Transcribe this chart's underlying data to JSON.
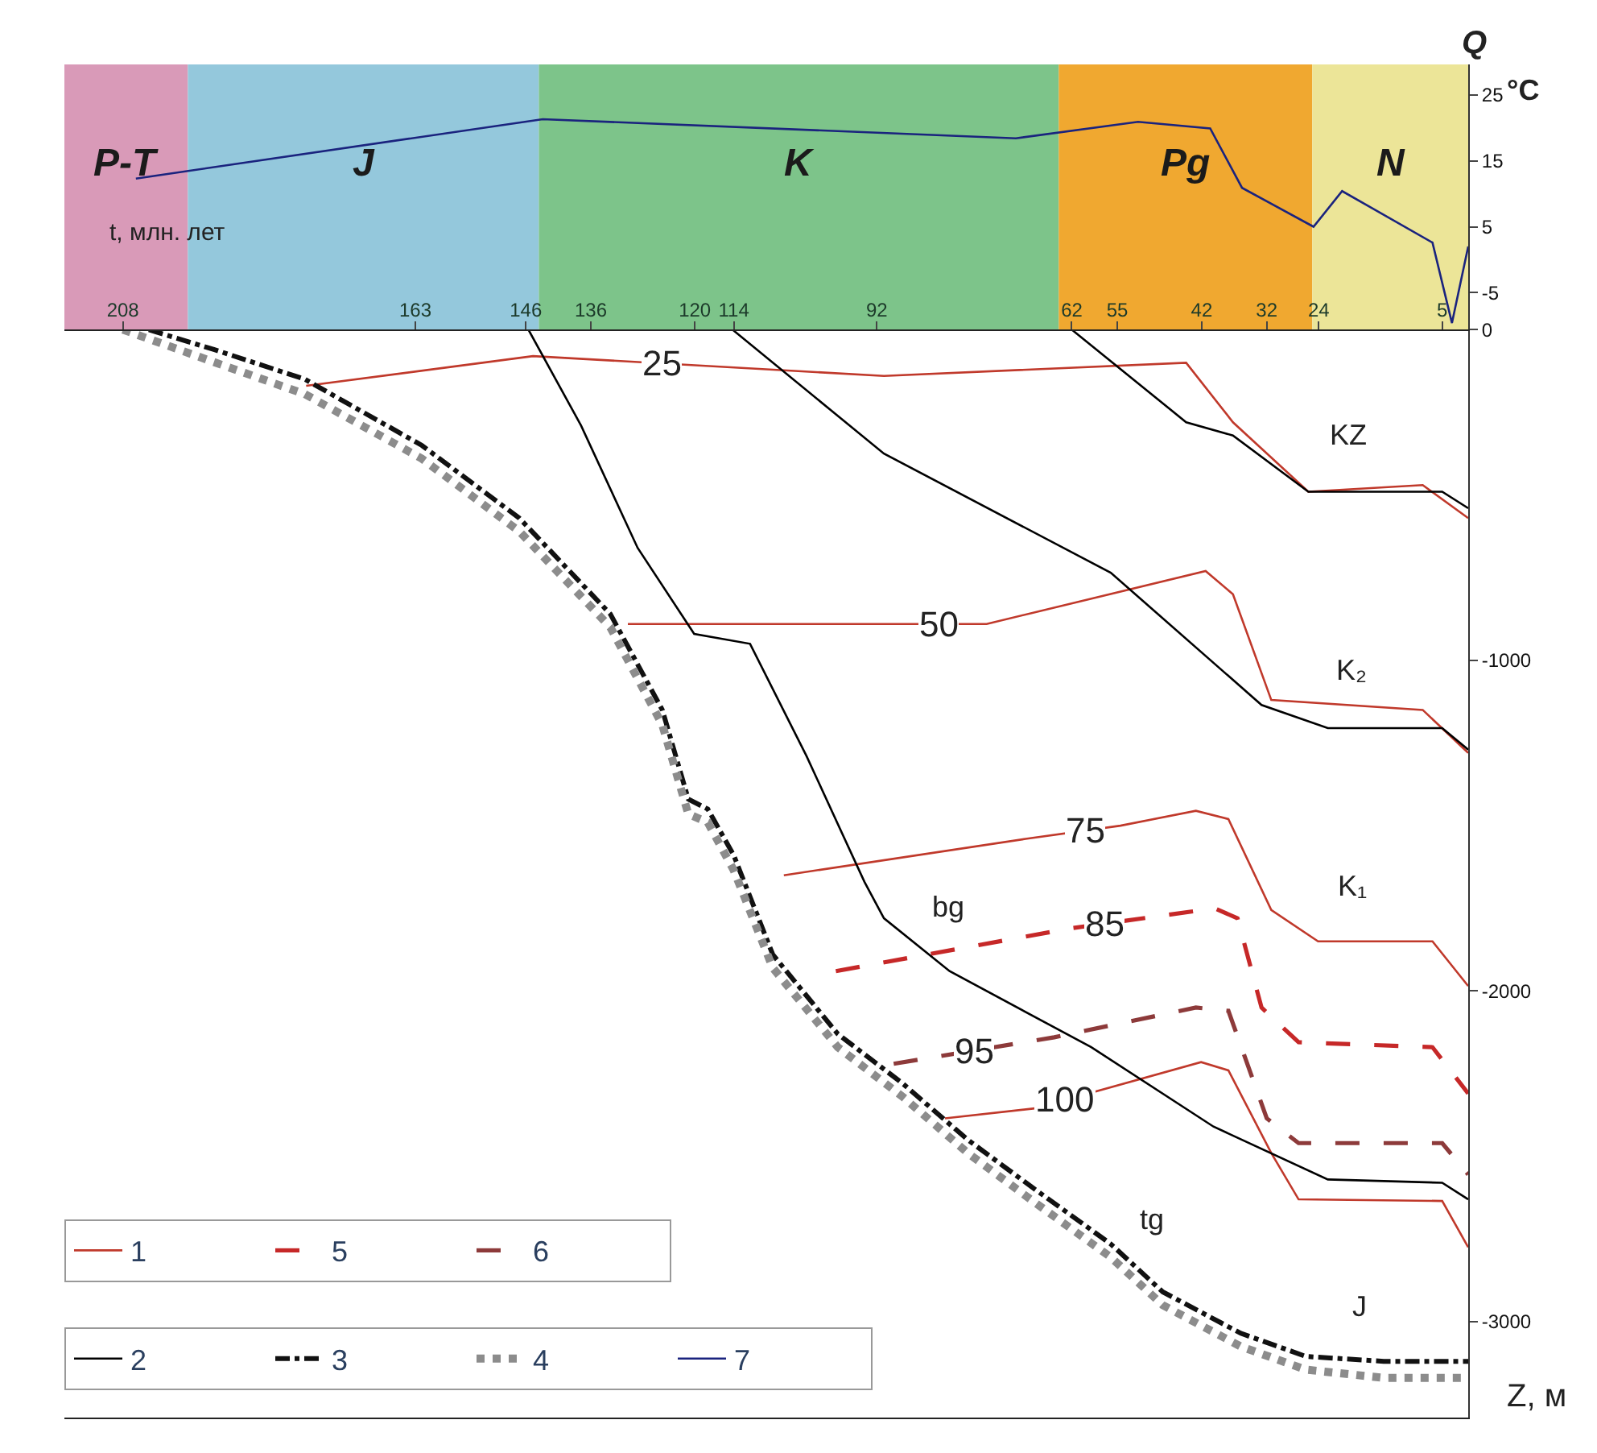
{
  "chart_data": [
    {
      "type": "line",
      "xlabel": "t, млн. лет",
      "ylabel": "°C",
      "annotations": [
        "Q"
      ],
      "xlim": [
        217,
        1
      ],
      "xticks": [
        208,
        163,
        146,
        136,
        120,
        114,
        92,
        62,
        55,
        42,
        32,
        24,
        5
      ],
      "ylim": [
        -10.6,
        29.6
      ],
      "yticks": [
        25,
        15,
        5,
        -5
      ],
      "legend": "bottom left",
      "grid": false,
      "bands": [
        {
          "axis": "x",
          "from": 217,
          "to": 198,
          "label": "P-T",
          "color": "#d99ab8"
        },
        {
          "axis": "x",
          "from": 198,
          "to": 144,
          "label": "J",
          "color": "#94c8dc"
        },
        {
          "axis": "x",
          "from": 144,
          "to": 64,
          "label": "K",
          "color": "#7dc48a"
        },
        {
          "axis": "x",
          "from": 64,
          "to": 25,
          "label": "Pg",
          "color": "#f0a830"
        },
        {
          "axis": "x",
          "from": 25,
          "to": 1,
          "label": "N",
          "color": "#ece598"
        }
      ],
      "series": [
        {
          "name": "7",
          "color": "#1a237e",
          "line_style": "solid",
          "x": [
            206,
            143.4,
            70.6,
            51.8,
            40.7,
            35.8,
            24.8,
            20.4,
            6.5,
            3.5,
            1
          ],
          "values": [
            12.3,
            21.3,
            18.4,
            20.9,
            19.9,
            10.9,
            5,
            10.4,
            2.6,
            -9.6,
            2
          ]
        }
      ]
    },
    {
      "type": "line",
      "ylabel": "Z, м",
      "xlim": [
        217,
        1
      ],
      "ylim": [
        -3290,
        0
      ],
      "yticks": [
        0,
        -1000,
        -2000,
        -3000
      ],
      "tick_labels": "y",
      "legend": "bottom left",
      "grid": false,
      "annotations": [
        {
          "text": "25",
          "x": 125,
          "y": -102
        },
        {
          "text": "50",
          "x": 82.5,
          "y": -890
        },
        {
          "text": "75",
          "x": 60,
          "y": -1515
        },
        {
          "text": "85",
          "x": 57,
          "y": -1796
        },
        {
          "text": "95",
          "x": 77,
          "y": -2180
        },
        {
          "text": "100",
          "x": 63,
          "y": -2330
        },
        "bg",
        "tg",
        "KZ",
        "K₂",
        "K₁",
        "J"
      ],
      "series": [
        {
          "name": "1",
          "color": "#c0392b",
          "line_style": "solid",
          "x": [
            179.8,
            144.9,
            90.9,
            44.4,
            37.2,
            25.6,
            8,
            1
          ],
          "values": [
            -170,
            -80,
            -140,
            -100,
            -280,
            -490,
            -470,
            -570
          ]
        },
        {
          "color": "#c0392b",
          "line_style": "solid",
          "x": [
            130.3,
            92.4,
            75.1,
            41.4,
            37.2,
            31.3,
            8,
            1
          ],
          "values": [
            -890,
            -890,
            -890,
            -730,
            -800,
            -1120,
            -1150,
            -1280
          ]
        },
        {
          "color": "#c0392b",
          "line_style": "solid",
          "x": [
            106.3,
            69.1,
            54.5,
            42.9,
            37.9,
            31.3,
            24.1,
            6.5,
            1
          ],
          "values": [
            -1650,
            -1540,
            -1500,
            -1455,
            -1480,
            -1755,
            -1850,
            -1850,
            -1985
          ]
        },
        {
          "color": "#c0392b",
          "line_style": "solid",
          "x": [
            81.5,
            67.7,
            42.1,
            37.9,
            31.3,
            27.1,
            5,
            1
          ],
          "values": [
            -2385,
            -2355,
            -2215,
            -2240,
            -2490,
            -2630,
            -2635,
            -2775
          ]
        },
        {
          "name": "5",
          "color": "#c62828",
          "line_style": "dashed",
          "x": [
            98.3,
            62,
            40,
            36.5,
            32.8,
            27.1,
            6.5,
            1
          ],
          "values": [
            -1940,
            -1810,
            -1750,
            -1780,
            -2050,
            -2155,
            -2170,
            -2310
          ]
        },
        {
          "name": "6",
          "color": "#8d3a3a",
          "line_style": "dashed",
          "x": [
            89.4,
            64.7,
            42.9,
            37.9,
            32,
            27.1,
            5,
            1
          ],
          "values": [
            -2220,
            -2140,
            -2050,
            -2060,
            -2385,
            -2460,
            -2460,
            -2555
          ]
        },
        {
          "color": "#000000",
          "line_style": "solid",
          "x": [
            114.2,
            90.9,
            56,
            32.8,
            22.6,
            5,
            1
          ],
          "values": [
            0,
            -375,
            -735,
            -1135,
            -1205,
            -1205,
            -1270
          ]
        },
        {
          "color": "#000000",
          "line_style": "solid",
          "x": [
            62,
            44.4,
            37.2,
            25.6,
            5,
            1
          ],
          "values": [
            0,
            -280,
            -320,
            -490,
            -490,
            -540
          ]
        },
        {
          "name": "2",
          "color": "#000000",
          "line_style": "solid",
          "x": [
            145.6,
            137.5,
            128.8,
            120.1,
            111.5,
            102.8,
            93.9,
            90.9,
            80.8,
            59,
            40.2,
            22.6,
            5,
            1
          ],
          "values": [
            0,
            -290,
            -660,
            -920,
            -950,
            -1290,
            -1670,
            -1780,
            -1940,
            -2170,
            -2410,
            -2570,
            -2580,
            -2630
          ]
        },
        {
          "name": "3",
          "color": "#111111",
          "line_style": "dashdot",
          "x": [
            204,
            194,
            180,
            162,
            147,
            133,
            125,
            121,
            118,
            114,
            108,
            98,
            88,
            78,
            68,
            56,
            48,
            36,
            26,
            14,
            1
          ],
          "values": [
            0,
            -60,
            -150,
            -350,
            -570,
            -860,
            -1150,
            -1420,
            -1450,
            -1590,
            -1890,
            -2130,
            -2280,
            -2450,
            -2595,
            -2765,
            -2910,
            -3035,
            -3105,
            -3120,
            -3120
          ]
        },
        {
          "name": "4",
          "color": "#8c8c8c",
          "line_style": "dotted",
          "x": [
            208,
            194,
            180,
            162,
            147,
            133,
            125,
            121,
            118,
            114,
            108,
            98,
            88,
            78,
            68,
            56,
            48,
            36,
            26,
            14,
            1
          ],
          "values": [
            0,
            -98,
            -195,
            -390,
            -610,
            -900,
            -1195,
            -1465,
            -1490,
            -1635,
            -1930,
            -2170,
            -2320,
            -2490,
            -2635,
            -2805,
            -2950,
            -3075,
            -3145,
            -3170,
            -3170
          ]
        }
      ]
    }
  ]
}
